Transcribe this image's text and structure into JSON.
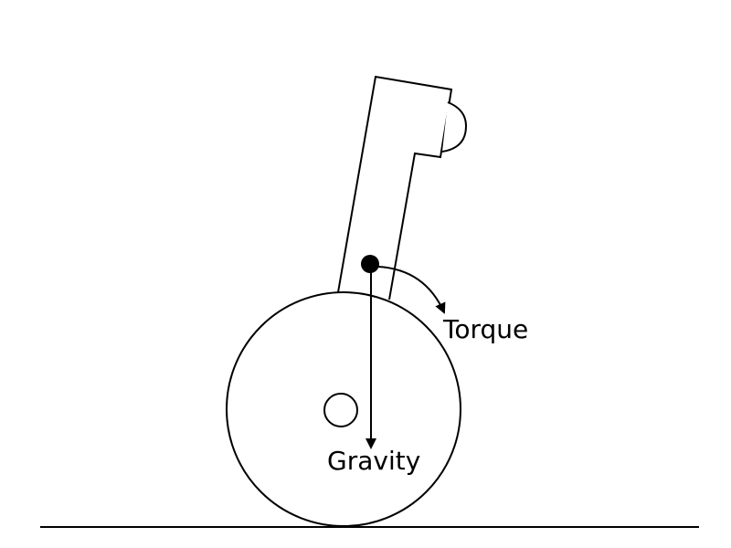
{
  "labels": {
    "torque": "Torque",
    "gravity": "Gravity"
  },
  "colors": {
    "stroke": "#000000",
    "background": "#ffffff"
  }
}
